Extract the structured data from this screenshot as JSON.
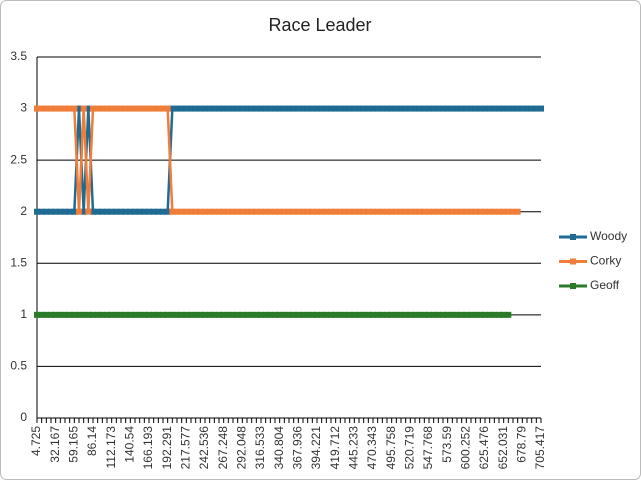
{
  "chart_data": {
    "type": "line",
    "title": "Race Leader",
    "categories": [
      "4.725",
      null,
      null,
      null,
      "32.167",
      null,
      null,
      null,
      "59.165",
      null,
      null,
      null,
      "86.14",
      null,
      null,
      null,
      "112.173",
      null,
      null,
      null,
      "140.54",
      null,
      null,
      null,
      "166.193",
      null,
      null,
      null,
      "192.291",
      null,
      null,
      null,
      "217.577",
      null,
      null,
      null,
      "242.536",
      null,
      null,
      null,
      "267.248",
      null,
      null,
      null,
      "292.048",
      null,
      null,
      null,
      "316.533",
      null,
      null,
      null,
      "340.804",
      null,
      null,
      null,
      "367.936",
      null,
      null,
      null,
      "394.221",
      null,
      null,
      null,
      "419.712",
      null,
      null,
      null,
      "445.233",
      null,
      null,
      null,
      "470.343",
      null,
      null,
      null,
      "495.758",
      null,
      null,
      null,
      "520.719",
      null,
      null,
      null,
      "547.768",
      null,
      null,
      null,
      "573.59",
      null,
      null,
      null,
      "600.252",
      null,
      null,
      null,
      "625.476",
      null,
      null,
      null,
      "652.031",
      null,
      null,
      null,
      "678.79",
      null,
      null,
      null,
      "705.417"
    ],
    "series": [
      {
        "name": "Woody",
        "color": "#1f6b93",
        "values": [
          2,
          2,
          2,
          2,
          2,
          2,
          2,
          2,
          2,
          3,
          2,
          3,
          2,
          2,
          2,
          2,
          2,
          2,
          2,
          2,
          2,
          2,
          2,
          2,
          2,
          2,
          2,
          2,
          2,
          3,
          3,
          3,
          3,
          3,
          3,
          3,
          3,
          3,
          3,
          3,
          3,
          3,
          3,
          3,
          3,
          3,
          3,
          3,
          3,
          3,
          3,
          3,
          3,
          3,
          3,
          3,
          3,
          3,
          3,
          3,
          3,
          3,
          3,
          3,
          3,
          3,
          3,
          3,
          3,
          3,
          3,
          3,
          3,
          3,
          3,
          3,
          3,
          3,
          3,
          3,
          3,
          3,
          3,
          3,
          3,
          3,
          3,
          3,
          3,
          3,
          3,
          3,
          3,
          3,
          3,
          3,
          3,
          3,
          3,
          3,
          3,
          3,
          3,
          3,
          3,
          3,
          3,
          3,
          3
        ]
      },
      {
        "name": "Corky",
        "color": "#f07d3a",
        "values": [
          3,
          3,
          3,
          3,
          3,
          3,
          3,
          3,
          3,
          2,
          3,
          2,
          3,
          3,
          3,
          3,
          3,
          3,
          3,
          3,
          3,
          3,
          3,
          3,
          3,
          3,
          3,
          3,
          3,
          2,
          2,
          2,
          2,
          2,
          2,
          2,
          2,
          2,
          2,
          2,
          2,
          2,
          2,
          2,
          2,
          2,
          2,
          2,
          2,
          2,
          2,
          2,
          2,
          2,
          2,
          2,
          2,
          2,
          2,
          2,
          2,
          2,
          2,
          2,
          2,
          2,
          2,
          2,
          2,
          2,
          2,
          2,
          2,
          2,
          2,
          2,
          2,
          2,
          2,
          2,
          2,
          2,
          2,
          2,
          2,
          2,
          2,
          2,
          2,
          2,
          2,
          2,
          2,
          2,
          2,
          2,
          2,
          2,
          2,
          2,
          2,
          2,
          2,
          2,
          null,
          null,
          null,
          null,
          null
        ]
      },
      {
        "name": "Geoff",
        "color": "#2a7a2a",
        "values": [
          1,
          1,
          1,
          1,
          1,
          1,
          1,
          1,
          1,
          1,
          1,
          1,
          1,
          1,
          1,
          1,
          1,
          1,
          1,
          1,
          1,
          1,
          1,
          1,
          1,
          1,
          1,
          1,
          1,
          1,
          1,
          1,
          1,
          1,
          1,
          1,
          1,
          1,
          1,
          1,
          1,
          1,
          1,
          1,
          1,
          1,
          1,
          1,
          1,
          1,
          1,
          1,
          1,
          1,
          1,
          1,
          1,
          1,
          1,
          1,
          1,
          1,
          1,
          1,
          1,
          1,
          1,
          1,
          1,
          1,
          1,
          1,
          1,
          1,
          1,
          1,
          1,
          1,
          1,
          1,
          1,
          1,
          1,
          1,
          1,
          1,
          1,
          1,
          1,
          1,
          1,
          1,
          1,
          1,
          1,
          1,
          1,
          1,
          1,
          1,
          1,
          1,
          null,
          null,
          null,
          null,
          null,
          null,
          null
        ]
      }
    ],
    "ylim": [
      0,
      3.5
    ],
    "yticks": [
      0,
      0.5,
      1,
      1.5,
      2,
      2.5,
      3,
      3.5
    ],
    "grid": true,
    "legend": "right"
  }
}
